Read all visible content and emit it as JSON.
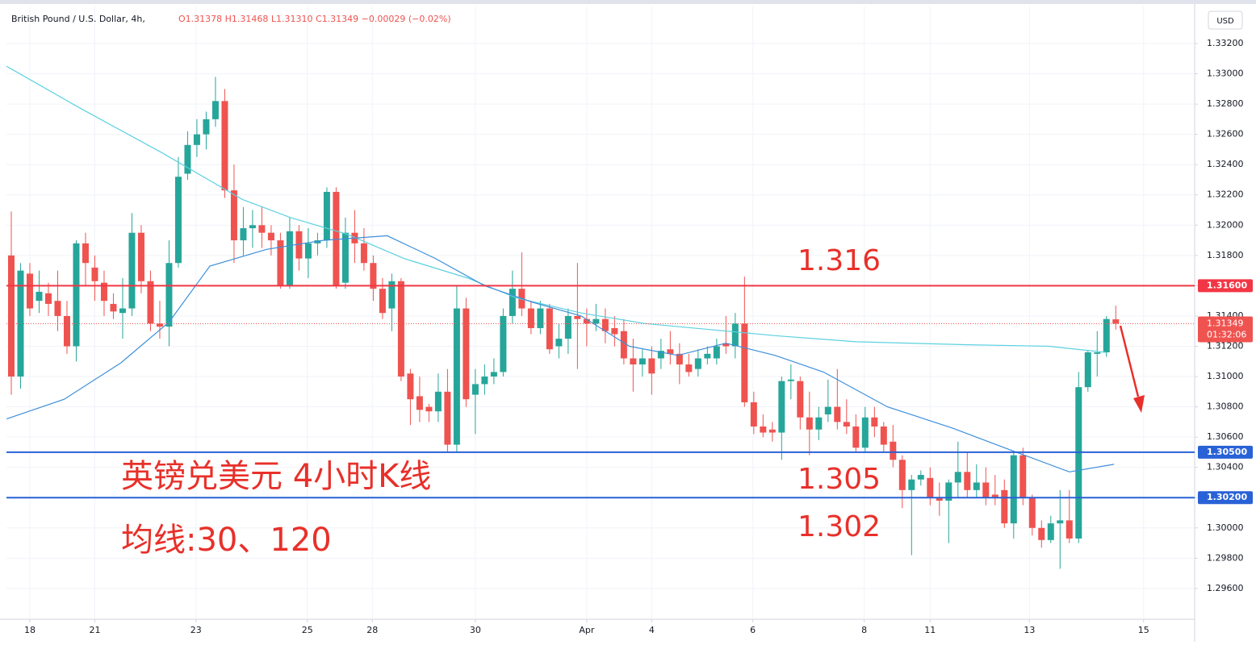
{
  "chart_data": {
    "type": "candlestick",
    "symbol": "British Pound / U.S. Dollar, 4h,",
    "ohlc": "O1.31378 H1.31468 L1.31310 C1.31349 −0.00029 (−0.02%)",
    "currency": "USD",
    "up_color": "#26a69a",
    "down_color": "#ef5350",
    "grid": true,
    "ylim": [
      1.29397,
      1.33445
    ],
    "yticks": [
      {
        "value": 1.296,
        "label": "1.29600"
      },
      {
        "value": 1.298,
        "label": "1.29800"
      },
      {
        "value": 1.3,
        "label": "1.30000"
      },
      {
        "value": 1.302,
        "label": "1.30200"
      },
      {
        "value": 1.304,
        "label": "1.30400"
      },
      {
        "value": 1.306,
        "label": "1.30600"
      },
      {
        "value": 1.308,
        "label": "1.30800"
      },
      {
        "value": 1.31,
        "label": "1.31000"
      },
      {
        "value": 1.312,
        "label": "1.31200"
      },
      {
        "value": 1.314,
        "label": "1.31400"
      },
      {
        "value": 1.316,
        "label": "1.31600"
      },
      {
        "value": 1.318,
        "label": "1.31800"
      },
      {
        "value": 1.32,
        "label": "1.32000"
      },
      {
        "value": 1.322,
        "label": "1.32200"
      },
      {
        "value": 1.324,
        "label": "1.32400"
      },
      {
        "value": 1.326,
        "label": "1.32600"
      },
      {
        "value": 1.328,
        "label": "1.32800"
      },
      {
        "value": 1.33,
        "label": "1.33000"
      },
      {
        "value": 1.332,
        "label": "1.33200"
      }
    ],
    "xlim": [
      -0.52,
      127.5
    ],
    "xticks": [
      {
        "value": 2.0,
        "label": "18"
      },
      {
        "value": 9.0,
        "label": "21"
      },
      {
        "value": 19.9,
        "label": "23"
      },
      {
        "value": 31.9,
        "label": "25"
      },
      {
        "value": 38.9,
        "label": "28"
      },
      {
        "value": 50.0,
        "label": "30"
      },
      {
        "value": 62.0,
        "label": "Apr"
      },
      {
        "value": 69.0,
        "label": "4"
      },
      {
        "value": 79.9,
        "label": "6"
      },
      {
        "value": 91.9,
        "label": "8"
      },
      {
        "value": 99.0,
        "label": "11"
      },
      {
        "value": 109.7,
        "label": "13"
      },
      {
        "value": 122.0,
        "label": "15"
      }
    ],
    "x": [
      0,
      1,
      2,
      3,
      4,
      5,
      6,
      7,
      8,
      9,
      10,
      11,
      12,
      13,
      14,
      15,
      16,
      17,
      18,
      19,
      20,
      21,
      22,
      23,
      24,
      25,
      26,
      27,
      28,
      29,
      30,
      31,
      32,
      33,
      34,
      35,
      36,
      37,
      38,
      39,
      40,
      41,
      42,
      43,
      44,
      45,
      46,
      47,
      48,
      49,
      50,
      51,
      52,
      53,
      54,
      55,
      56,
      57,
      58,
      59,
      60,
      61,
      62,
      63,
      64,
      65,
      66,
      67,
      68,
      69,
      70,
      71,
      72,
      73,
      74,
      75,
      76,
      77,
      78,
      79,
      80,
      81,
      82,
      83,
      84,
      85,
      86,
      87,
      88,
      89,
      90,
      91,
      92,
      93,
      94,
      95,
      96,
      97,
      98,
      99,
      100,
      101,
      102,
      103,
      104,
      105,
      106,
      107,
      108,
      109,
      110,
      111,
      112,
      113,
      114,
      115,
      116,
      117,
      118,
      119
    ],
    "open": [
      1.318,
      1.31,
      1.3168,
      1.315,
      1.3155,
      1.315,
      1.314,
      1.312,
      1.3188,
      1.3172,
      1.3162,
      1.3148,
      1.3142,
      1.3145,
      1.3195,
      1.3163,
      1.3135,
      1.3133,
      1.3175,
      1.3234,
      1.3253,
      1.326,
      1.327,
      1.3282,
      1.3223,
      1.319,
      1.3198,
      1.32,
      1.3195,
      1.319,
      1.316,
      1.3196,
      1.3178,
      1.3188,
      1.319,
      1.3222,
      1.3162,
      1.3195,
      1.3188,
      1.3175,
      1.3158,
      1.3145,
      1.3163,
      1.3102,
      1.3087,
      1.308,
      1.3077,
      1.309,
      1.3055,
      1.3145,
      1.3088,
      1.3095,
      1.31,
      1.3103,
      1.314,
      1.3158,
      1.3145,
      1.3132,
      1.3145,
      1.312,
      1.3125,
      1.314,
      1.3138,
      1.3135,
      1.3138,
      1.3132,
      1.313,
      1.3112,
      1.3108,
      1.3112,
      1.3112,
      1.3118,
      1.3115,
      1.3108,
      1.3105,
      1.3112,
      1.3112,
      1.3122,
      1.312,
      1.3135,
      1.3083,
      1.3067,
      1.3065,
      1.3063,
      1.3097,
      1.3097,
      1.3073,
      1.3065,
      1.3075,
      1.308,
      1.307,
      1.3067,
      1.3053,
      1.3073,
      1.3067,
      1.3057,
      1.3045,
      1.3025,
      1.3032,
      1.3033,
      1.302,
      1.3018,
      1.303,
      1.3037,
      1.3025,
      1.303,
      1.3022,
      1.3025,
      1.3003,
      1.3048,
      1.302,
      1.3,
      1.2992,
      1.3003,
      1.3005,
      1.2993,
      1.3093,
      1.3115,
      1.3116,
      1.31378
    ],
    "high": [
      1.3209,
      1.3175,
      1.3175,
      1.317,
      1.3162,
      1.317,
      1.315,
      1.319,
      1.3195,
      1.318,
      1.317,
      1.3155,
      1.3165,
      1.3208,
      1.32,
      1.317,
      1.315,
      1.319,
      1.3245,
      1.3262,
      1.327,
      1.3275,
      1.3298,
      1.329,
      1.324,
      1.3212,
      1.321,
      1.3212,
      1.32,
      1.3195,
      1.3205,
      1.32,
      1.3198,
      1.3195,
      1.3225,
      1.3225,
      1.3205,
      1.321,
      1.3198,
      1.318,
      1.3165,
      1.3168,
      1.3165,
      1.3105,
      1.31,
      1.3082,
      1.3102,
      1.3105,
      1.316,
      1.3152,
      1.3105,
      1.3108,
      1.3112,
      1.3145,
      1.317,
      1.3182,
      1.315,
      1.315,
      1.3148,
      1.3135,
      1.3145,
      1.3175,
      1.3145,
      1.3148,
      1.3145,
      1.314,
      1.3138,
      1.3125,
      1.3118,
      1.312,
      1.3125,
      1.313,
      1.3122,
      1.3115,
      1.3118,
      1.312,
      1.3125,
      1.314,
      1.3142,
      1.3166,
      1.309,
      1.3075,
      1.307,
      1.31,
      1.3108,
      1.31,
      1.309,
      1.308,
      1.3098,
      1.3105,
      1.3085,
      1.3075,
      1.308,
      1.308,
      1.307,
      1.3068,
      1.3048,
      1.3035,
      1.3038,
      1.304,
      1.303,
      1.3032,
      1.3057,
      1.305,
      1.3042,
      1.304,
      1.3035,
      1.3032,
      1.305,
      1.3053,
      1.3022,
      1.3005,
      1.3008,
      1.3025,
      1.3025,
      1.3103,
      1.3117,
      1.313,
      1.314,
      1.31468
    ],
    "low": [
      1.3088,
      1.3092,
      1.314,
      1.3142,
      1.314,
      1.313,
      1.3115,
      1.311,
      1.316,
      1.315,
      1.314,
      1.3138,
      1.3125,
      1.314,
      1.3155,
      1.313,
      1.3125,
      1.312,
      1.3172,
      1.323,
      1.3245,
      1.325,
      1.3265,
      1.3218,
      1.3175,
      1.318,
      1.3185,
      1.3185,
      1.318,
      1.3158,
      1.3158,
      1.317,
      1.3165,
      1.318,
      1.3185,
      1.3158,
      1.3158,
      1.3175,
      1.317,
      1.315,
      1.3138,
      1.313,
      1.3097,
      1.3068,
      1.307,
      1.307,
      1.307,
      1.305,
      1.305,
      1.308,
      1.3062,
      1.3088,
      1.3095,
      1.31,
      1.3135,
      1.314,
      1.3128,
      1.3128,
      1.3115,
      1.3112,
      1.3115,
      1.3105,
      1.312,
      1.313,
      1.3122,
      1.312,
      1.3108,
      1.309,
      1.31,
      1.3088,
      1.3105,
      1.3108,
      1.3095,
      1.31,
      1.31,
      1.3108,
      1.3108,
      1.3115,
      1.3112,
      1.308,
      1.3062,
      1.306,
      1.3057,
      1.3045,
      1.3085,
      1.3065,
      1.3048,
      1.3058,
      1.307,
      1.3065,
      1.3062,
      1.305,
      1.305,
      1.306,
      1.305,
      1.304,
      1.3013,
      1.2982,
      1.3028,
      1.3015,
      1.3008,
      1.299,
      1.302,
      1.302,
      1.302,
      1.3015,
      1.3015,
      1.3,
      1.2993,
      1.3015,
      1.2995,
      1.2987,
      1.299,
      1.2973,
      1.299,
      1.299,
      1.309,
      1.31,
      1.3113,
      1.3131
    ],
    "close": [
      1.31,
      1.317,
      1.3145,
      1.3156,
      1.3148,
      1.314,
      1.312,
      1.3188,
      1.3175,
      1.3163,
      1.315,
      1.3143,
      1.3145,
      1.3195,
      1.3163,
      1.3135,
      1.3133,
      1.3175,
      1.3232,
      1.3253,
      1.326,
      1.327,
      1.3282,
      1.3223,
      1.319,
      1.3198,
      1.32,
      1.3195,
      1.319,
      1.316,
      1.3196,
      1.3178,
      1.3188,
      1.319,
      1.3222,
      1.316,
      1.3195,
      1.3188,
      1.3175,
      1.3158,
      1.3142,
      1.3163,
      1.31,
      1.3085,
      1.3078,
      1.3077,
      1.309,
      1.3055,
      1.3145,
      1.3085,
      1.3095,
      1.31,
      1.3103,
      1.314,
      1.3158,
      1.3145,
      1.3132,
      1.3145,
      1.3118,
      1.3125,
      1.314,
      1.3138,
      1.3135,
      1.3138,
      1.313,
      1.3128,
      1.3112,
      1.3108,
      1.3112,
      1.3102,
      1.3117,
      1.3115,
      1.3108,
      1.3103,
      1.3112,
      1.3115,
      1.312,
      1.312,
      1.3135,
      1.3083,
      1.3067,
      1.3063,
      1.3063,
      1.3097,
      1.3098,
      1.3073,
      1.3065,
      1.3073,
      1.308,
      1.307,
      1.3067,
      1.3053,
      1.3073,
      1.3067,
      1.3055,
      1.3045,
      1.3025,
      1.3032,
      1.3035,
      1.302,
      1.3018,
      1.303,
      1.3037,
      1.3025,
      1.303,
      1.302,
      1.302,
      1.3003,
      1.3048,
      1.302,
      1.3,
      1.2992,
      1.3003,
      1.3005,
      1.2993,
      1.3093,
      1.3116,
      1.3116,
      1.3138,
      1.31349
    ],
    "lines": [
      {
        "color": "#5cd1e0",
        "x": [
          -0.5,
          7.5,
          16.2,
          24.9,
          30.1,
          36.2,
          42.3,
          49.2,
          54.4,
          61.4,
          68.3,
          75.3,
          82.3,
          91,
          103.1,
          111.8,
          117.9
        ],
        "values": [
          1.3305,
          1.3277,
          1.3248,
          1.3217,
          1.3205,
          1.3194,
          1.3178,
          1.3165,
          1.3152,
          1.3142,
          1.3135,
          1.3131,
          1.3127,
          1.3123,
          1.3121,
          1.312,
          1.3116
        ]
      },
      {
        "color": "#3d8fd9",
        "x": [
          -0.5,
          5.7,
          11.8,
          17,
          21.4,
          27.5,
          33.6,
          40.5,
          45.7,
          51,
          56.2,
          61.4,
          66.6,
          71.8,
          77,
          82.3,
          87.5,
          94.4,
          101.4,
          108.3,
          114,
          118.8
        ],
        "values": [
          1.3072,
          1.3085,
          1.3109,
          1.3136,
          1.3173,
          1.3184,
          1.319,
          1.3193,
          1.3178,
          1.316,
          1.3149,
          1.314,
          1.312,
          1.3114,
          1.3122,
          1.3114,
          1.3103,
          1.308,
          1.3066,
          1.305,
          1.3037,
          1.3042
        ]
      }
    ],
    "hlines": [
      {
        "value": 1.316,
        "label": "1.31600",
        "color": "#f23645"
      },
      {
        "value": 1.305,
        "label": "1.30500",
        "color": "#2962d6"
      },
      {
        "value": 1.302,
        "label": "1.30200",
        "color": "#2962d6"
      }
    ],
    "last_price": {
      "value": 1.31349,
      "label": "1.31349",
      "countdown": "01:32:06",
      "color": "#ef5350"
    },
    "annotations": [
      "英镑兑美元 4小时K线",
      "均线:30、120",
      "1.316",
      "1.305",
      "1.302"
    ]
  }
}
